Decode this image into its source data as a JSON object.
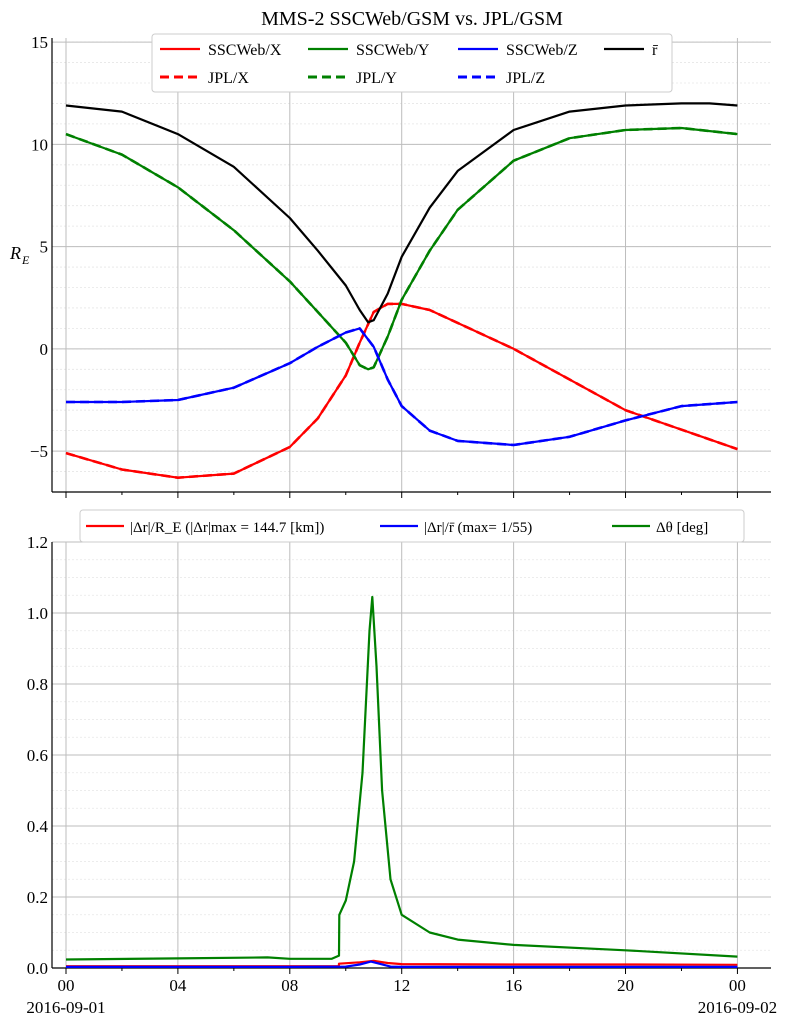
{
  "figure": {
    "title": "MMS-2 SSCWeb/GSM vs. JPL/GSM",
    "x_tick_labels": [
      "00",
      "04",
      "08",
      "12",
      "16",
      "20",
      "00"
    ],
    "x_date_labels": [
      "2016-09-01",
      "2016-09-02"
    ]
  },
  "chart_data": [
    {
      "type": "line",
      "panel": "top",
      "ylabel": "R_E",
      "ylim": [
        -7.0,
        15.2
      ],
      "xlim_hours": [
        -0.5,
        25.2
      ],
      "yticks": [
        -5,
        0,
        5,
        10,
        15
      ],
      "ytick_labels": [
        "−5",
        "0",
        "5",
        "10",
        "15"
      ],
      "grid": true,
      "legend_position": "top-center",
      "legend_columns": 4,
      "series": [
        {
          "name": "SSCWeb/X",
          "color": "#ff0000",
          "dash": "solid",
          "x": [
            0,
            2,
            4,
            6,
            8,
            9,
            10,
            10.5,
            11,
            11.5,
            12,
            13,
            16,
            20,
            24
          ],
          "y": [
            -5.1,
            -5.9,
            -6.3,
            -6.1,
            -4.8,
            -3.4,
            -1.3,
            0.3,
            1.8,
            2.2,
            2.2,
            1.9,
            0,
            -3,
            -4.9
          ]
        },
        {
          "name": "JPL/X",
          "color": "#ff0000",
          "dash": "dashed",
          "x": [
            0,
            2,
            4,
            6,
            8,
            9,
            10,
            10.5,
            11,
            11.5,
            12,
            13,
            16,
            20,
            24
          ],
          "y": [
            -5.1,
            -5.9,
            -6.3,
            -6.1,
            -4.8,
            -3.4,
            -1.3,
            0.3,
            1.8,
            2.2,
            2.2,
            1.9,
            0,
            -3,
            -4.9
          ]
        },
        {
          "name": "SSCWeb/Y",
          "color": "#008000",
          "dash": "solid",
          "x": [
            0,
            2,
            4,
            6,
            8,
            9,
            10,
            10.5,
            10.8,
            11,
            11.5,
            12,
            13,
            14,
            16,
            18,
            20,
            22,
            24
          ],
          "y": [
            10.5,
            9.5,
            7.9,
            5.8,
            3.3,
            1.8,
            0.3,
            -0.8,
            -1,
            -0.9,
            0.6,
            2.4,
            4.8,
            6.8,
            9.2,
            10.3,
            10.7,
            10.8,
            10.5
          ]
        },
        {
          "name": "JPL/Y",
          "color": "#008000",
          "dash": "dashed",
          "x": [
            0,
            2,
            4,
            6,
            8,
            9,
            10,
            10.5,
            10.8,
            11,
            11.5,
            12,
            13,
            14,
            16,
            18,
            20,
            22,
            24
          ],
          "y": [
            10.5,
            9.5,
            7.9,
            5.8,
            3.3,
            1.8,
            0.3,
            -0.8,
            -1,
            -0.9,
            0.6,
            2.4,
            4.8,
            6.8,
            9.2,
            10.3,
            10.7,
            10.8,
            10.5
          ]
        },
        {
          "name": "SSCWeb/Z",
          "color": "#0000ff",
          "dash": "solid",
          "x": [
            0,
            2,
            4,
            6,
            8,
            9,
            10,
            10.5,
            11,
            11.5,
            12,
            13,
            14,
            16,
            18,
            20,
            22,
            24
          ],
          "y": [
            -2.6,
            -2.6,
            -2.5,
            -1.9,
            -0.7,
            0.1,
            0.8,
            1,
            0.1,
            -1.5,
            -2.8,
            -4,
            -4.5,
            -4.7,
            -4.3,
            -3.5,
            -2.8,
            -2.6
          ]
        },
        {
          "name": "JPL/Z",
          "color": "#0000ff",
          "dash": "dashed",
          "x": [
            0,
            2,
            4,
            6,
            8,
            9,
            10,
            10.5,
            11,
            11.5,
            12,
            13,
            14,
            16,
            18,
            20,
            22,
            24
          ],
          "y": [
            -2.6,
            -2.6,
            -2.5,
            -1.9,
            -0.7,
            0.1,
            0.8,
            1,
            0.1,
            -1.5,
            -2.8,
            -4,
            -4.5,
            -4.7,
            -4.3,
            -3.5,
            -2.8,
            -2.6
          ]
        },
        {
          "name": "r̄",
          "color": "#000000",
          "dash": "solid",
          "x": [
            0,
            2,
            4,
            6,
            8,
            9,
            10,
            10.5,
            10.8,
            11,
            11.5,
            12,
            13,
            14,
            16,
            18,
            20,
            22,
            23,
            24
          ],
          "y": [
            11.9,
            11.6,
            10.5,
            8.9,
            6.4,
            4.8,
            3.1,
            1.9,
            1.3,
            1.4,
            2.7,
            4.5,
            6.9,
            8.7,
            10.7,
            11.6,
            11.9,
            12,
            12,
            11.9
          ]
        }
      ]
    },
    {
      "type": "line",
      "panel": "bottom",
      "ylim": [
        0.0,
        1.2
      ],
      "xlim_hours": [
        -0.5,
        25.2
      ],
      "yticks": [
        0.0,
        0.2,
        0.4,
        0.6,
        0.8,
        1.0,
        1.2
      ],
      "ytick_labels": [
        "0.0",
        "0.2",
        "0.4",
        "0.6",
        "0.8",
        "1.0",
        "1.2"
      ],
      "grid": true,
      "legend_position": "top-center",
      "legend_columns": 3,
      "series": [
        {
          "name": "|Δr|/R_E (|Δr|max = 144.7 [km])",
          "color": "#ff0000",
          "x": [
            0,
            4,
            8,
            9.75,
            9.76,
            10.5,
            11,
            11.5,
            12,
            16,
            20,
            24
          ],
          "y": [
            0.005,
            0.005,
            0.005,
            0.005,
            0.012,
            0.016,
            0.02,
            0.014,
            0.011,
            0.01,
            0.01,
            0.009
          ]
        },
        {
          "name": "|Δr|/r̄ (max= 1/55)",
          "color": "#0000ff",
          "x": [
            0,
            4,
            8,
            10,
            10.5,
            10.9,
            11.2,
            11.6,
            12,
            16,
            20,
            24
          ],
          "y": [
            0.003,
            0.003,
            0.003,
            0.004,
            0.01,
            0.018,
            0.012,
            0.004,
            0.003,
            0.003,
            0.003,
            0.003
          ]
        },
        {
          "name": "Δθ [deg]",
          "color": "#008000",
          "x": [
            0,
            4,
            7.2,
            8,
            9.5,
            9.76,
            9.77,
            10,
            10.3,
            10.6,
            10.85,
            10.95,
            11.1,
            11.3,
            11.6,
            12,
            13,
            14,
            16,
            20,
            24
          ],
          "y": [
            0.024,
            0.027,
            0.03,
            0.026,
            0.026,
            0.035,
            0.15,
            0.19,
            0.3,
            0.55,
            0.95,
            1.045,
            0.85,
            0.5,
            0.25,
            0.15,
            0.1,
            0.08,
            0.065,
            0.05,
            0.032
          ]
        }
      ]
    }
  ]
}
